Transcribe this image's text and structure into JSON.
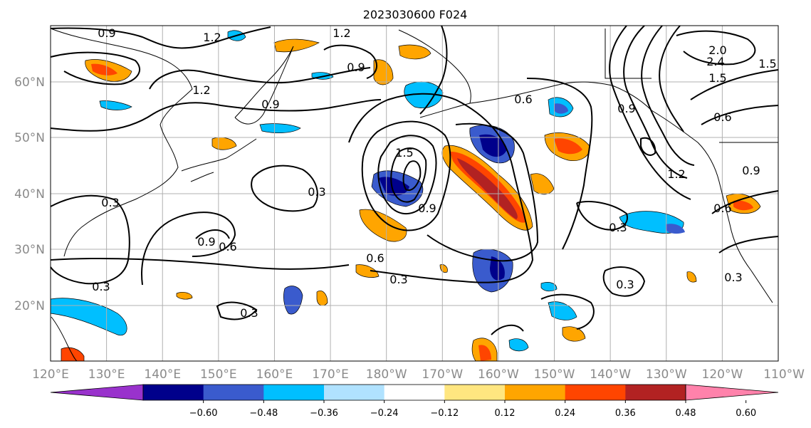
{
  "title": "2023030600 F024",
  "map": {
    "lat_labels": [
      "60°N",
      "50°N",
      "40°N",
      "30°N",
      "20°N"
    ],
    "lon_labels": [
      "120°E",
      "130°E",
      "140°E",
      "150°E",
      "160°E",
      "170°E",
      "180°W",
      "170°W",
      "160°W",
      "150°W",
      "140°W",
      "130°W",
      "120°W",
      "110°W"
    ],
    "grid": true,
    "contour_labels": [
      "0.9",
      "1.2",
      "1.2",
      "1.2",
      "0.9",
      "0.9",
      "1.5",
      "0.3",
      "0.9",
      "0.6",
      "0.6",
      "0.3",
      "0.3",
      "0.3",
      "0.9",
      "0.6",
      "0.3",
      "0.9",
      "1.5",
      "2.4",
      "2.0",
      "1.5",
      "0.6",
      "1.2",
      "0.9",
      "0.6",
      "0.3",
      "0.3",
      "0.3"
    ]
  },
  "colorbar": {
    "ticks": [
      "−0.60",
      "−0.48",
      "−0.36",
      "−0.24",
      "−0.12",
      "0.12",
      "0.24",
      "0.36",
      "0.48",
      "0.60"
    ],
    "colors": [
      "#9932cc",
      "#00008b",
      "#3a5bcd",
      "#00bfff",
      "#b0e2ff",
      "#ffffff",
      "#ffe680",
      "#ffa500",
      "#ff4500",
      "#b22222",
      "#ff82ab"
    ]
  }
}
